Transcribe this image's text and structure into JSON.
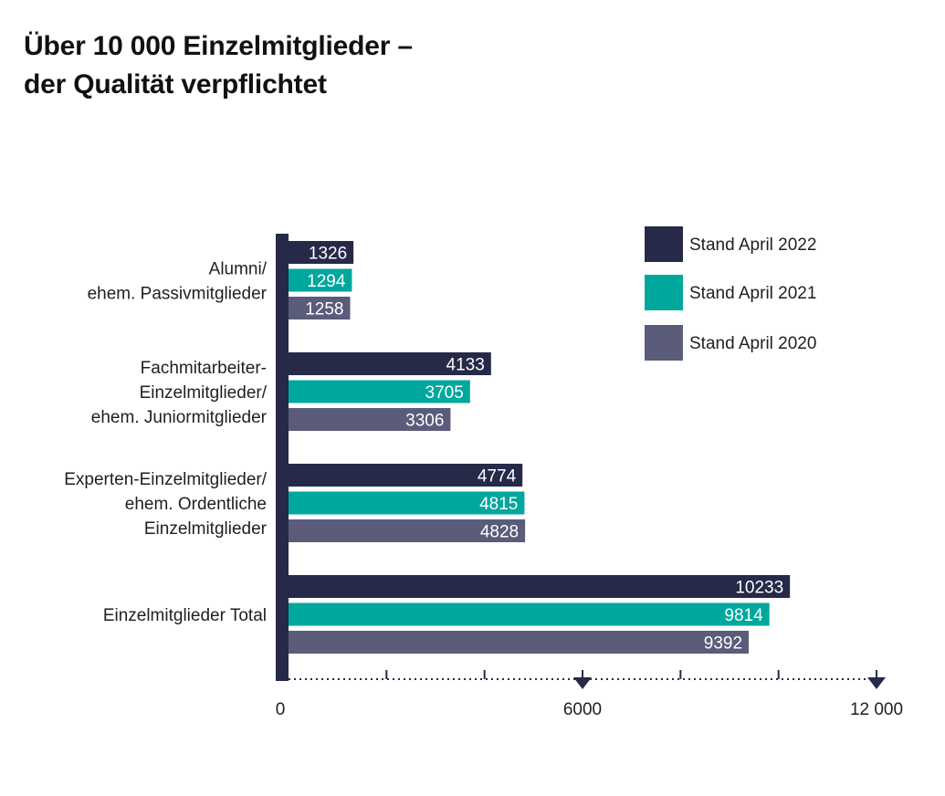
{
  "chart_data": {
    "type": "bar",
    "orientation": "horizontal",
    "title_lines": [
      "Über 10 000 Einzelmitglieder –",
      "der Qualität verpflichtet"
    ],
    "categories": [
      [
        "Alumni/",
        "ehem. Passivmitglieder"
      ],
      [
        "Fachmitarbeiter-",
        "Einzelmitglieder/",
        "ehem. Juniormitglieder"
      ],
      [
        "Experten-Einzelmitglieder/",
        "ehem. Ordentliche",
        "Einzelmitglieder"
      ],
      [
        "Einzelmitglieder Total"
      ]
    ],
    "series": [
      {
        "name": "Stand April 2022",
        "color": "#262a48",
        "values": [
          1326,
          4133,
          4774,
          10233
        ]
      },
      {
        "name": "Stand April 2021",
        "color": "#00a79d",
        "values": [
          1294,
          3705,
          4815,
          9814
        ]
      },
      {
        "name": "Stand April 2020",
        "color": "#5a5c7a",
        "values": [
          1258,
          3306,
          4828,
          9392
        ]
      }
    ],
    "x_tick_labels": [
      {
        "value": 0,
        "label": "0"
      },
      {
        "value": 6000,
        "label": "6000"
      },
      {
        "value": 12000,
        "label": "12 000"
      }
    ],
    "x_minor_ticks": [
      2000,
      4000,
      8000,
      10000
    ],
    "xlim": [
      0,
      12000
    ],
    "legend_placement": "top-right",
    "axis_color": "#262a48",
    "grid": false
  }
}
